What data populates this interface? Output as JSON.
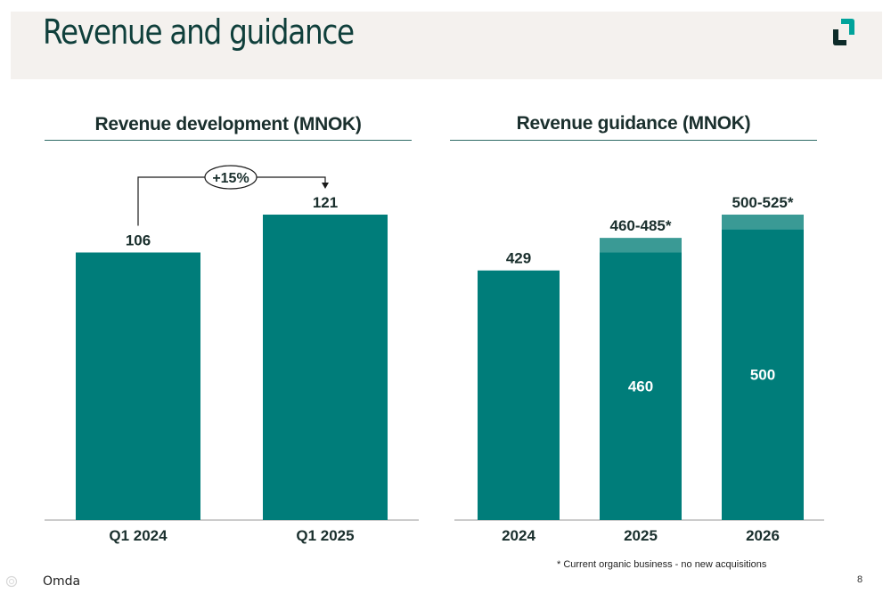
{
  "page": {
    "title": "Revenue and guidance",
    "brand": "Omda",
    "page_number": "8",
    "footnote": "* Current organic business - no new acquisitions",
    "colors": {
      "bar": "#007d7a",
      "bar_range": "#3a9a95",
      "title": "#0f3f3b",
      "band": "#f4f1ee"
    }
  },
  "chart_data": [
    {
      "type": "bar",
      "title": "Revenue development (MNOK)",
      "categories": [
        "Q1 2024",
        "Q1 2025"
      ],
      "values": [
        106,
        121
      ],
      "value_labels": [
        "106",
        "121"
      ],
      "ylim": [
        0,
        121
      ],
      "annotation": {
        "label": "+15%",
        "from": "Q1 2024",
        "to": "Q1 2025"
      }
    },
    {
      "type": "bar",
      "title": "Revenue guidance (MNOK)",
      "categories": [
        "2024",
        "2025",
        "2026"
      ],
      "values": [
        429,
        460,
        500
      ],
      "range_top": [
        null,
        485,
        525
      ],
      "value_labels": [
        "429",
        "460",
        "500"
      ],
      "top_labels": [
        "",
        "460-485*",
        "500-525*"
      ],
      "ylim": [
        0,
        525
      ]
    }
  ]
}
